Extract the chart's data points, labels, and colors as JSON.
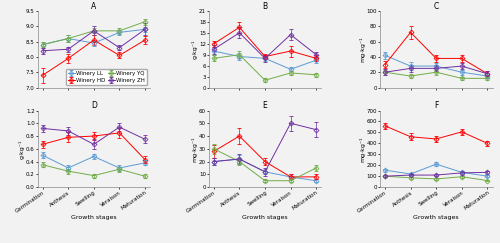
{
  "x_labels": [
    "Germination",
    "Anthesis",
    "Swelling",
    "Veraison",
    "Maturation"
  ],
  "series_labels": [
    "Winery LL",
    "Winery HD",
    "Winery YQ",
    "Winery ZH"
  ],
  "series_colors": [
    "#5B9BD5",
    "#FF0000",
    "#70AD47",
    "#7030A0"
  ],
  "A_data": {
    "title": "A",
    "ylabel": "",
    "ylim": [
      7.0,
      9.5
    ],
    "yticks": [
      7.0,
      7.5,
      8.0,
      8.5,
      9.0,
      9.5
    ],
    "LL": [
      8.4,
      8.6,
      8.45,
      8.8,
      8.9
    ],
    "HD": [
      7.4,
      7.95,
      8.55,
      8.05,
      8.55
    ],
    "YQ": [
      8.4,
      8.6,
      8.85,
      8.85,
      9.15
    ],
    "ZH": [
      8.2,
      8.25,
      8.85,
      8.3,
      8.9
    ],
    "LL_err": [
      0.1,
      0.1,
      0.08,
      0.08,
      0.08
    ],
    "HD_err": [
      0.25,
      0.15,
      0.15,
      0.1,
      0.12
    ],
    "YQ_err": [
      0.08,
      0.1,
      0.08,
      0.1,
      0.1
    ],
    "ZH_err": [
      0.1,
      0.08,
      0.15,
      0.08,
      0.2
    ]
  },
  "B_data": {
    "title": "B",
    "ylabel": "g·kg⁻¹",
    "ylim": [
      0.0,
      21.0
    ],
    "yticks": [
      0.0,
      3.0,
      6.0,
      9.0,
      12.0,
      15.0,
      18.0,
      21.0
    ],
    "LL": [
      10.0,
      8.5,
      8.0,
      5.0,
      7.5
    ],
    "HD": [
      12.0,
      16.5,
      8.5,
      10.0,
      8.0
    ],
    "YQ": [
      8.0,
      9.0,
      2.0,
      4.0,
      3.5
    ],
    "ZH": [
      10.5,
      15.0,
      8.0,
      14.5,
      9.0
    ],
    "LL_err": [
      1.0,
      1.0,
      0.8,
      0.5,
      0.8
    ],
    "HD_err": [
      0.8,
      1.5,
      0.8,
      1.5,
      0.8
    ],
    "YQ_err": [
      0.8,
      1.0,
      0.5,
      0.5,
      0.5
    ],
    "ZH_err": [
      1.2,
      1.5,
      1.0,
      1.5,
      0.8
    ]
  },
  "C_data": {
    "title": "C",
    "ylabel": "mg·kg⁻¹",
    "ylim": [
      0.0,
      100.0
    ],
    "yticks": [
      0.0,
      20.0,
      40.0,
      60.0,
      80.0,
      100.0
    ],
    "LL": [
      42.0,
      28.0,
      28.0,
      20.0,
      15.0
    ],
    "HD": [
      30.0,
      72.0,
      38.0,
      38.0,
      18.0
    ],
    "YQ": [
      20.0,
      15.0,
      20.0,
      12.0,
      12.0
    ],
    "ZH": [
      20.0,
      25.0,
      25.0,
      28.0,
      18.0
    ],
    "LL_err": [
      5.0,
      5.0,
      4.0,
      3.0,
      2.0
    ],
    "HD_err": [
      4.0,
      8.0,
      5.0,
      5.0,
      3.0
    ],
    "YQ_err": [
      3.0,
      3.0,
      3.0,
      2.0,
      2.0
    ],
    "ZH_err": [
      4.0,
      5.0,
      4.0,
      4.0,
      3.0
    ]
  },
  "D_data": {
    "title": "D",
    "ylabel": "g·kg⁻¹",
    "ylim": [
      0.0,
      1.2
    ],
    "yticks": [
      0.0,
      0.2,
      0.4,
      0.6,
      0.8,
      1.0,
      1.2
    ],
    "LL": [
      0.5,
      0.3,
      0.48,
      0.3,
      0.38
    ],
    "HD": [
      0.67,
      0.78,
      0.8,
      0.85,
      0.43
    ],
    "YQ": [
      0.35,
      0.25,
      0.18,
      0.28,
      0.17
    ],
    "ZH": [
      0.92,
      0.88,
      0.67,
      0.94,
      0.75
    ],
    "LL_err": [
      0.05,
      0.05,
      0.04,
      0.05,
      0.04
    ],
    "HD_err": [
      0.05,
      0.08,
      0.06,
      0.08,
      0.05
    ],
    "YQ_err": [
      0.04,
      0.04,
      0.03,
      0.04,
      0.03
    ],
    "ZH_err": [
      0.06,
      0.06,
      0.08,
      0.06,
      0.06
    ]
  },
  "E_data": {
    "title": "E",
    "ylabel": "mg·kg⁻¹",
    "ylim": [
      0.0,
      60.0
    ],
    "yticks": [
      0.0,
      10.0,
      20.0,
      30.0,
      40.0,
      50.0,
      60.0
    ],
    "LL": [
      20.0,
      22.0,
      12.0,
      8.0,
      5.0
    ],
    "HD": [
      28.0,
      40.0,
      20.0,
      8.0,
      8.0
    ],
    "YQ": [
      30.0,
      20.0,
      5.0,
      5.0,
      15.0
    ],
    "ZH": [
      20.0,
      22.0,
      12.0,
      50.0,
      45.0
    ],
    "LL_err": [
      3.0,
      3.0,
      2.0,
      2.0,
      1.0
    ],
    "HD_err": [
      5.0,
      6.0,
      3.0,
      2.0,
      2.0
    ],
    "YQ_err": [
      4.0,
      3.0,
      1.0,
      1.0,
      2.0
    ],
    "ZH_err": [
      3.0,
      4.0,
      3.0,
      6.0,
      6.0
    ]
  },
  "F_data": {
    "title": "F",
    "ylabel": "mg·kg⁻¹",
    "ylim": [
      0.0,
      700.0
    ],
    "yticks": [
      0.0,
      100.0,
      200.0,
      300.0,
      400.0,
      500.0,
      600.0,
      700.0
    ],
    "LL": [
      155.0,
      120.0,
      210.0,
      135.0,
      100.0
    ],
    "HD": [
      560.0,
      460.0,
      440.0,
      505.0,
      400.0
    ],
    "YQ": [
      100.0,
      85.0,
      75.0,
      95.0,
      60.0
    ],
    "ZH": [
      100.0,
      110.0,
      110.0,
      130.0,
      135.0
    ],
    "LL_err": [
      15.0,
      12.0,
      20.0,
      15.0,
      12.0
    ],
    "HD_err": [
      30.0,
      30.0,
      30.0,
      30.0,
      25.0
    ],
    "YQ_err": [
      10.0,
      10.0,
      8.0,
      10.0,
      8.0
    ],
    "ZH_err": [
      12.0,
      12.0,
      12.0,
      15.0,
      15.0
    ]
  },
  "xlabel": "Growth stages",
  "markersize": 2.5,
  "linewidth": 0.7,
  "fontsize_axlabel": 4.5,
  "fontsize_tick": 4.0,
  "fontsize_title": 5.5,
  "fontsize_legend": 4.0,
  "bg_color": "#F2F2F2"
}
